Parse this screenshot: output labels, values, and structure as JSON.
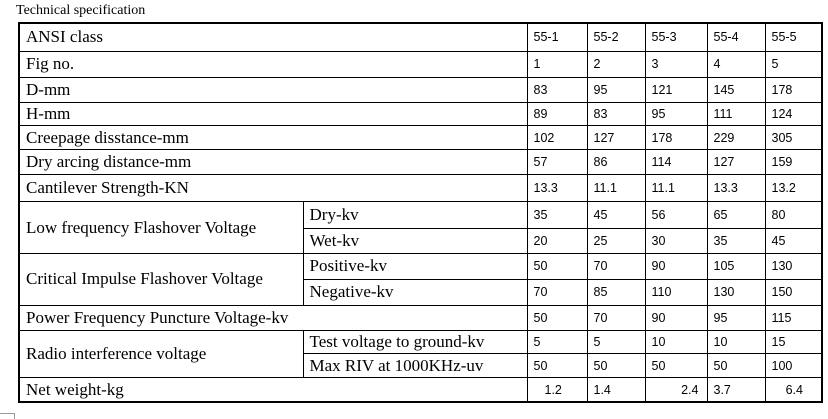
{
  "caption": "Technical specification",
  "table": {
    "ansi_class": {
      "label": "ANSI class",
      "values": [
        "55-1",
        "55-2",
        "55-3",
        "55-4",
        "55-5"
      ]
    },
    "fig_no": {
      "label": "Fig no.",
      "values": [
        "1",
        "2",
        "3",
        "4",
        "5"
      ]
    },
    "d_mm": {
      "label": "D-mm",
      "values": [
        "83",
        "95",
        "121",
        "145",
        "178"
      ]
    },
    "h_mm": {
      "label": "H-mm",
      "values": [
        "89",
        "83",
        "95",
        "111",
        "124"
      ]
    },
    "creepage": {
      "label": "Creepage disstance-mm",
      "values": [
        "102",
        "127",
        "178",
        "229",
        "305"
      ]
    },
    "dry_arcing": {
      "label": "Dry arcing distance-mm",
      "values": [
        "57",
        "86",
        "114",
        "127",
        "159"
      ]
    },
    "cantilever": {
      "label": "Cantilever Strength-KN",
      "values": [
        "13.3",
        "11.1",
        "11.1",
        "13.3",
        "13.2"
      ]
    },
    "low_freq": {
      "label": "Low frequency Flashover Voltage",
      "dry": {
        "label": "Dry-kv",
        "values": [
          "35",
          "45",
          "56",
          "65",
          "80"
        ]
      },
      "wet": {
        "label": "Wet-kv",
        "values": [
          "20",
          "25",
          "30",
          "35",
          "45"
        ]
      }
    },
    "impulse": {
      "label": "Critical Impulse Flashover Voltage",
      "positive": {
        "label": "Positive-kv",
        "values": [
          "50",
          "70",
          "90",
          "105",
          "130"
        ]
      },
      "negative": {
        "label": "Negative-kv",
        "values": [
          "70",
          "85",
          "110",
          "130",
          "150"
        ]
      }
    },
    "puncture": {
      "label": "Power Frequency Puncture Voltage-kv",
      "values": [
        "50",
        "70",
        "90",
        "95",
        "115"
      ]
    },
    "radio": {
      "label": "Radio interference voltage",
      "test_voltage": {
        "label": "Test voltage to ground-kv",
        "values": [
          "5",
          "5",
          "10",
          "10",
          "15"
        ]
      },
      "max_riv": {
        "label": "Max RIV at 1000KHz-uv",
        "values": [
          "50",
          "50",
          "50",
          "50",
          "100"
        ]
      }
    },
    "net_weight": {
      "label": "Net weight-kg",
      "values": [
        "1.2",
        "1.4",
        "2.4",
        "3.7",
        "6.4"
      ]
    }
  }
}
